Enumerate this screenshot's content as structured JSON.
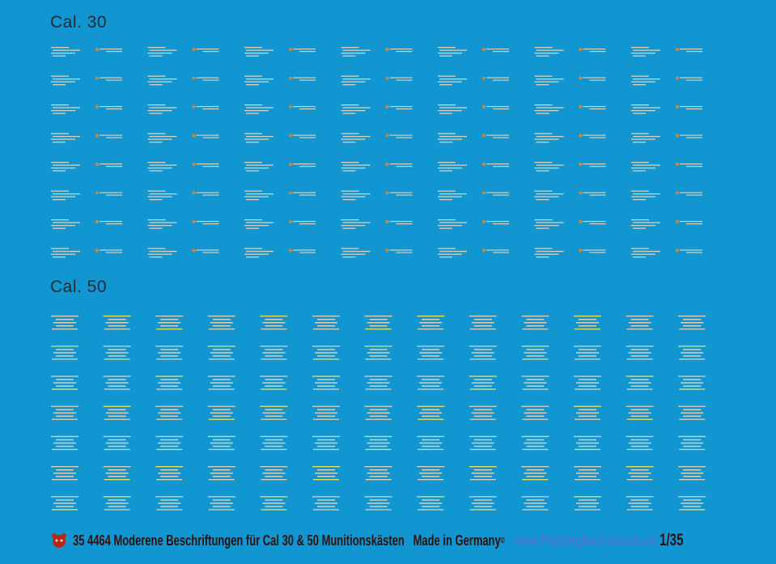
{
  "sheet": {
    "title_cal30": "Cal. 30",
    "title_cal50": "Cal. 50",
    "background": "#1296d2",
    "decal_line_color": "#d8d0b8",
    "decal_yellow_color": "#e8e060",
    "decal_dot_color": "#d08838"
  },
  "cal30": {
    "rows": 8,
    "cols": 7
  },
  "cal50": {
    "rows": 7,
    "cols": 13
  },
  "footer": {
    "logo_icon": "bear-logo-icon",
    "code": "35 4464",
    "description": "Moderene Beschriftungen für Cal 30 & 50 Munitionskästen",
    "made_in": "Made in Germany",
    "made_mark": "©",
    "website": "www.Peddinghaus-decals.de",
    "scale": "1/35"
  }
}
